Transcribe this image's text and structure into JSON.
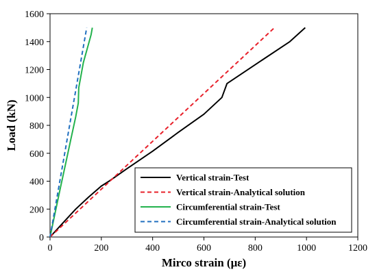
{
  "chart_data": {
    "type": "line",
    "xlabel": "Mirco strain (με)",
    "ylabel": "Load (kN)",
    "xlim": [
      0,
      1200
    ],
    "ylim": [
      0,
      1600
    ],
    "xticks": [
      0,
      200,
      400,
      600,
      800,
      1000,
      1200
    ],
    "yticks": [
      0,
      200,
      400,
      600,
      800,
      1000,
      1200,
      1400,
      1600
    ],
    "grid": false,
    "legend_position": "bottom-right",
    "series": [
      {
        "name": "Vertical strain-Test",
        "color": "#000000",
        "dash": "solid",
        "x": [
          0,
          50,
          100,
          150,
          200,
          230,
          300,
          400,
          500,
          600,
          670,
          690,
          800,
          935,
          995
        ],
        "y": [
          0,
          100,
          200,
          285,
          365,
          400,
          490,
          615,
          750,
          880,
          1000,
          1100,
          1235,
          1400,
          1500
        ]
      },
      {
        "name": "Vertical strain-Analytical solution",
        "color": "#e8202a",
        "dash": "dashed",
        "x": [
          0,
          875
        ],
        "y": [
          0,
          1500
        ]
      },
      {
        "name": "Circumferential  strain-Test",
        "color": "#22b14c",
        "dash": "solid",
        "x": [
          0,
          20,
          40,
          60,
          80,
          100,
          110,
          112,
          120,
          130,
          145,
          160,
          165
        ],
        "y": [
          0,
          175,
          350,
          520,
          690,
          860,
          960,
          1070,
          1150,
          1250,
          1350,
          1450,
          1500
        ]
      },
      {
        "name": "Circumferential  strain-Analytical solution",
        "color": "#1f6fbf",
        "dash": "dashed",
        "x": [
          0,
          143
        ],
        "y": [
          0,
          1500
        ]
      }
    ]
  }
}
